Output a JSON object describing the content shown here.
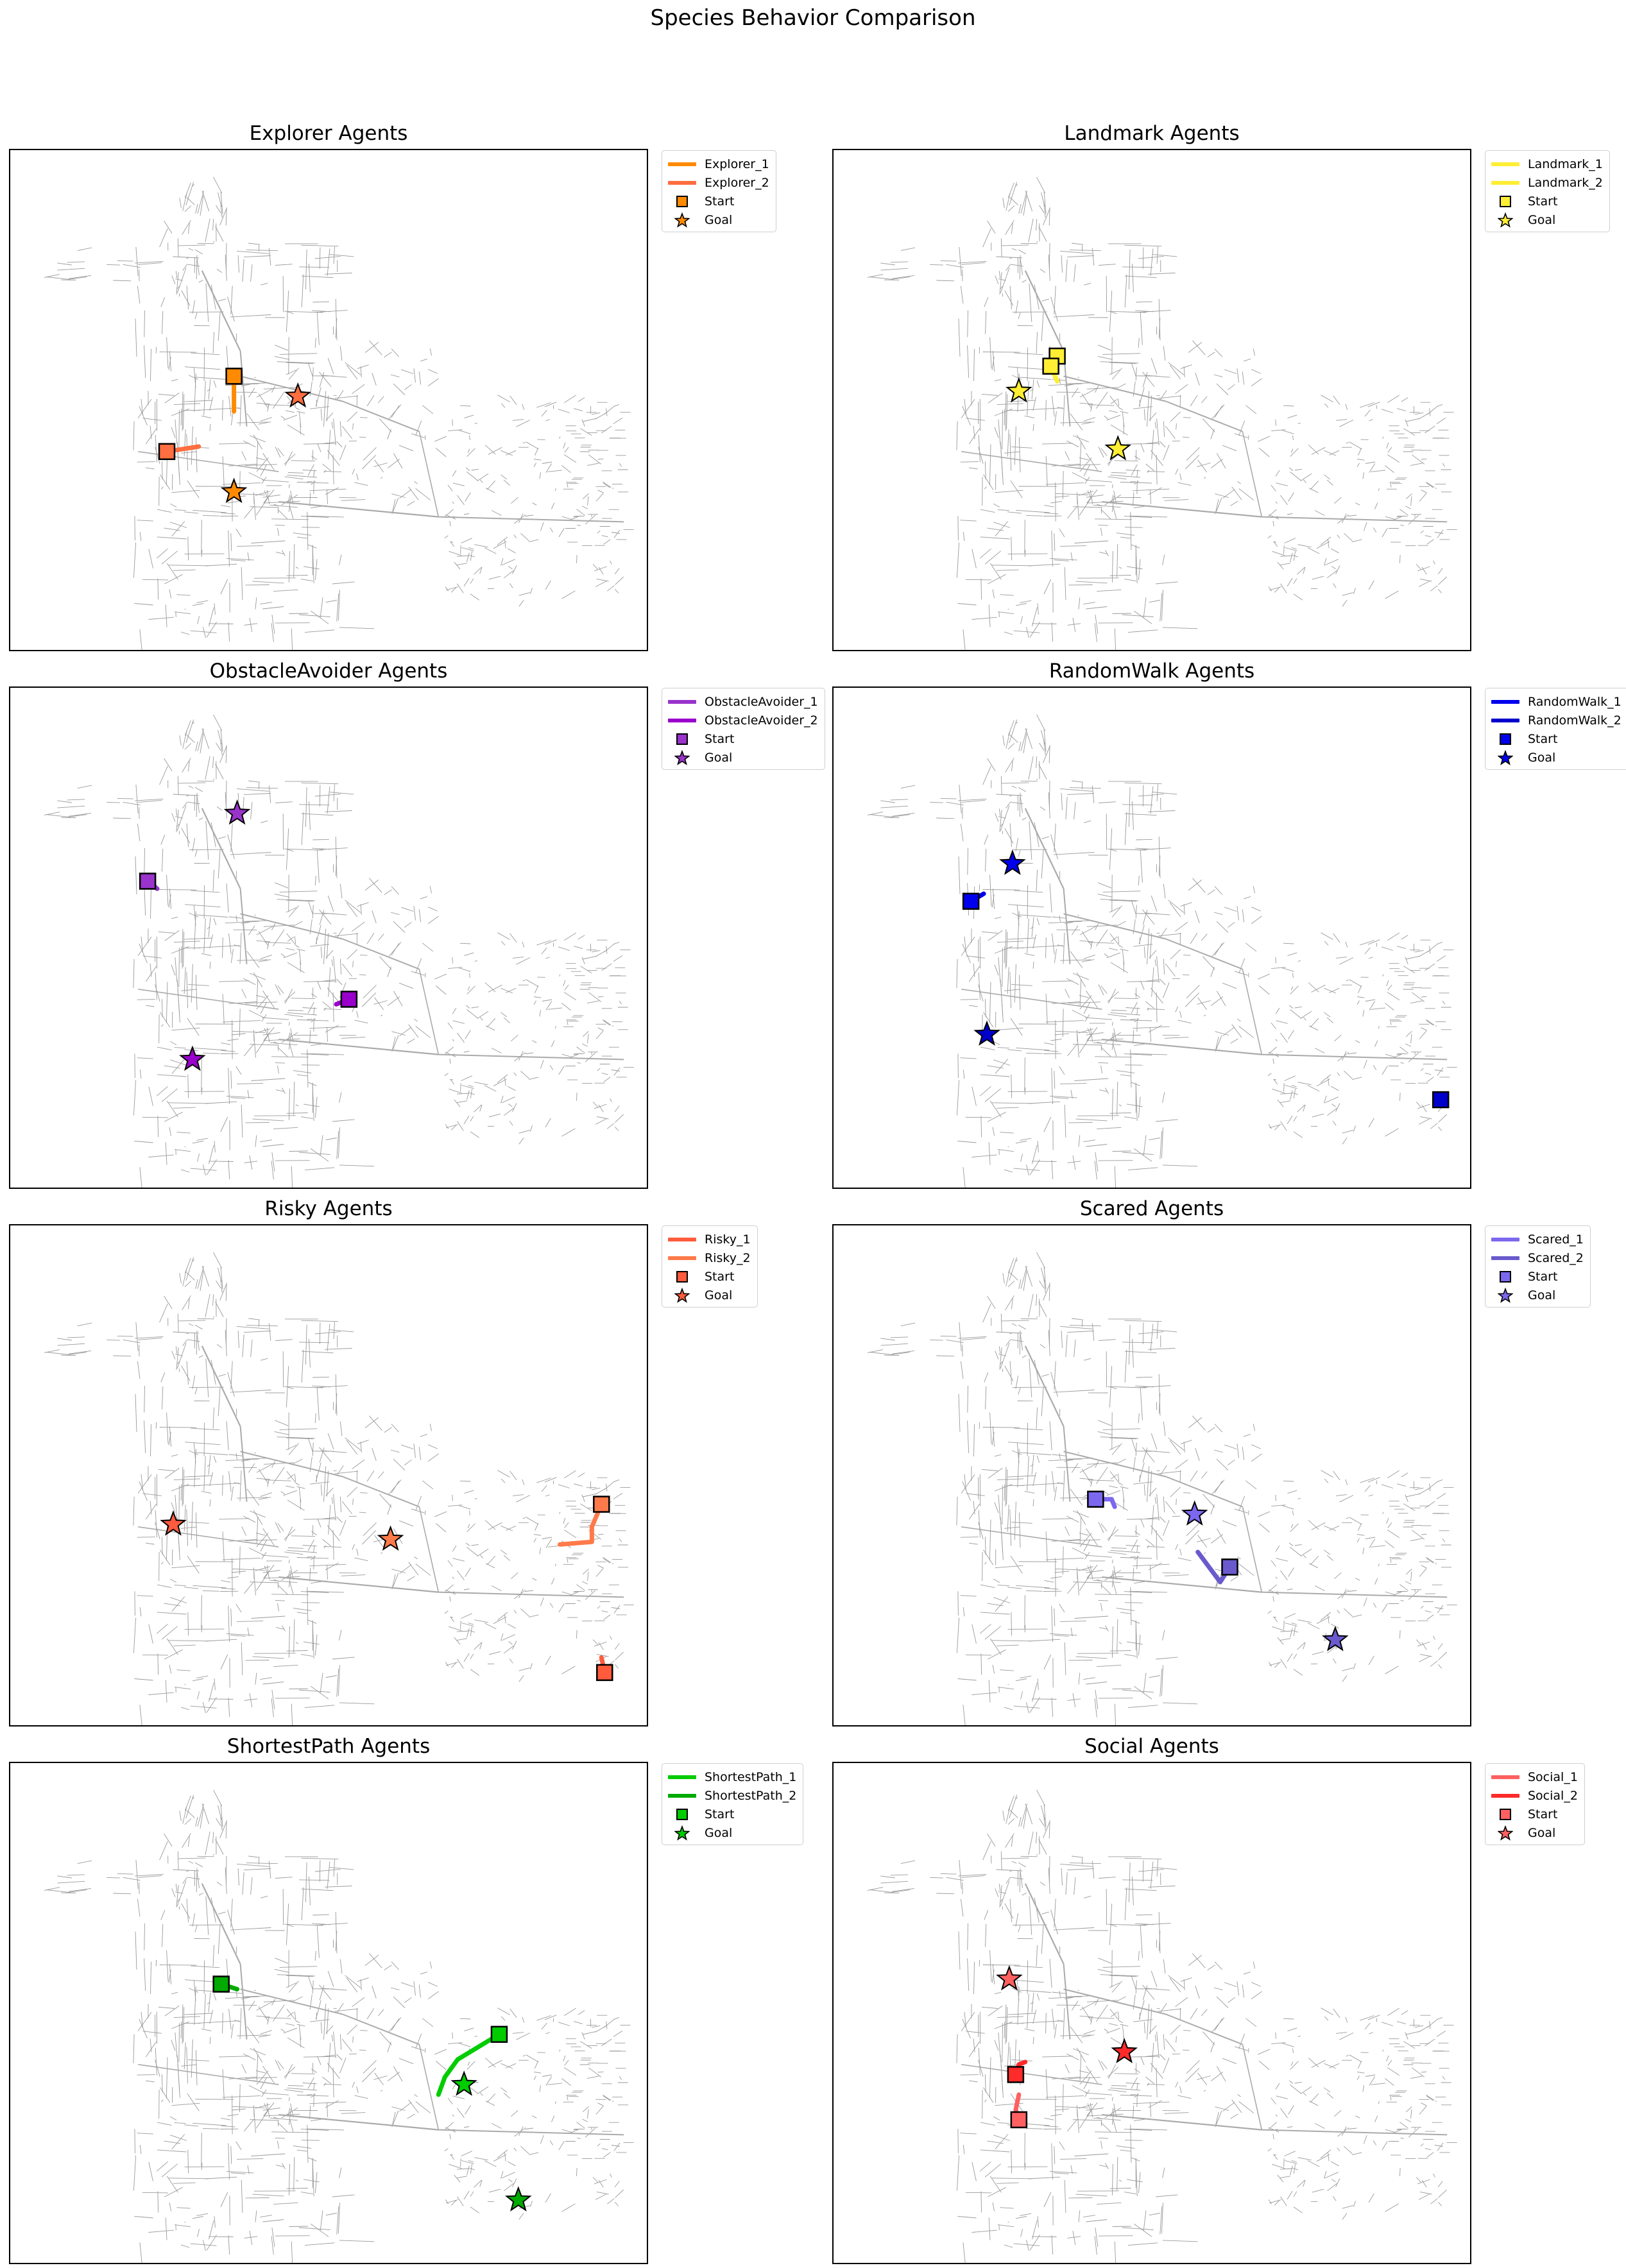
{
  "figure": {
    "title": "Species Behavior Comparison"
  },
  "chart_data": [
    {
      "type": "map-routes",
      "title": "Explorer Agents",
      "color_1": "#ff8a00",
      "color_2": "#ff6e40",
      "goal_color": "#ff8a00",
      "legend": [
        "Explorer_1",
        "Explorer_2",
        "Start",
        "Goal"
      ],
      "series": [
        {
          "name": "Explorer_1",
          "color": "#ff8a00",
          "path": [
            [
              0.35,
              0.45
            ],
            [
              0.35,
              0.52
            ]
          ],
          "start": [
            0.35,
            0.45
          ],
          "goal": [
            0.35,
            0.68
          ]
        },
        {
          "name": "Explorer_2",
          "color": "#ff6e40",
          "path": [
            [
              0.245,
              0.6
            ],
            [
              0.295,
              0.59
            ]
          ],
          "start": [
            0.245,
            0.6
          ],
          "goal": [
            0.45,
            0.49
          ]
        }
      ]
    },
    {
      "type": "map-routes",
      "title": "Landmark Agents",
      "legend": [
        "Landmark_1",
        "Landmark_2",
        "Start",
        "Goal"
      ],
      "series": [
        {
          "name": "Landmark_1",
          "color": "#ffee33",
          "path": [
            [
              0.35,
              0.41
            ],
            [
              0.35,
              0.44
            ]
          ],
          "start": [
            0.35,
            0.41
          ],
          "goal": [
            0.29,
            0.48
          ]
        },
        {
          "name": "Landmark_2",
          "color": "#ffee33",
          "path": [
            [
              0.34,
              0.43
            ],
            [
              0.35,
              0.46
            ]
          ],
          "start": [
            0.34,
            0.43
          ],
          "goal": [
            0.445,
            0.595
          ]
        }
      ]
    },
    {
      "type": "map-routes",
      "title": "ObstacleAvoider Agents",
      "legend": [
        "ObstacleAvoider_1",
        "ObstacleAvoider_2",
        "Start",
        "Goal"
      ],
      "series": [
        {
          "name": "ObstacleAvoider_1",
          "color": "#9933cc",
          "path": [
            [
              0.215,
              0.385
            ],
            [
              0.23,
              0.4
            ]
          ],
          "start": [
            0.215,
            0.385
          ],
          "goal": [
            0.355,
            0.25
          ]
        },
        {
          "name": "ObstacleAvoider_2",
          "color": "#9a00cc",
          "path": [
            [
              0.53,
              0.62
            ],
            [
              0.51,
              0.63
            ]
          ],
          "start": [
            0.53,
            0.62
          ],
          "goal": [
            0.285,
            0.74
          ]
        }
      ]
    },
    {
      "type": "map-routes",
      "title": "RandomWalk Agents",
      "legend": [
        "RandomWalk_1",
        "RandomWalk_2",
        "Start",
        "Goal"
      ],
      "series": [
        {
          "name": "RandomWalk_1",
          "color": "#0000ee",
          "path": [
            [
              0.215,
              0.425
            ],
            [
              0.235,
              0.41
            ]
          ],
          "start": [
            0.215,
            0.425
          ],
          "goal": [
            0.28,
            0.35
          ]
        },
        {
          "name": "RandomWalk_2",
          "color": "#0000cc",
          "path": [
            [
              0.95,
              0.82
            ],
            [
              0.95,
              0.82
            ]
          ],
          "start": [
            0.95,
            0.82
          ],
          "goal": [
            0.24,
            0.69
          ]
        }
      ]
    },
    {
      "type": "map-routes",
      "title": "Risky Agents",
      "legend": [
        "Risky_1",
        "Risky_2",
        "Start",
        "Goal"
      ],
      "series": [
        {
          "name": "Risky_1",
          "color": "#ff5b3c",
          "path": [
            [
              0.93,
              0.89
            ],
            [
              0.925,
              0.86
            ]
          ],
          "start": [
            0.93,
            0.89
          ],
          "goal": [
            0.255,
            0.595
          ]
        },
        {
          "name": "Risky_2",
          "color": "#ff7a4a",
          "path": [
            [
              0.925,
              0.555
            ],
            [
              0.91,
              0.6
            ],
            [
              0.91,
              0.63
            ],
            [
              0.86,
              0.635
            ]
          ],
          "start": [
            0.925,
            0.555
          ],
          "goal": [
            0.595,
            0.625
          ]
        }
      ]
    },
    {
      "type": "map-routes",
      "title": "Scared Agents",
      "legend": [
        "Scared_1",
        "Scared_2",
        "Start",
        "Goal"
      ],
      "series": [
        {
          "name": "Scared_1",
          "color": "#7b68ee",
          "path": [
            [
              0.41,
              0.545
            ],
            [
              0.435,
              0.545
            ],
            [
              0.44,
              0.56
            ]
          ],
          "start": [
            0.41,
            0.545
          ],
          "goal": [
            0.565,
            0.575
          ]
        },
        {
          "name": "Scared_2",
          "color": "#6a5acd",
          "path": [
            [
              0.62,
              0.68
            ],
            [
              0.605,
              0.71
            ],
            [
              0.57,
              0.65
            ]
          ],
          "start": [
            0.62,
            0.68
          ],
          "goal": [
            0.785,
            0.825
          ]
        }
      ]
    },
    {
      "type": "map-routes",
      "title": "ShortestPath Agents",
      "legend": [
        "ShortestPath_1",
        "ShortestPath_2",
        "Start",
        "Goal"
      ],
      "series": [
        {
          "name": "ShortestPath_1",
          "color": "#00cc00",
          "path": [
            [
              0.765,
              0.54
            ],
            [
              0.7,
              0.59
            ],
            [
              0.68,
              0.625
            ],
            [
              0.67,
              0.66
            ]
          ],
          "start": [
            0.765,
            0.54
          ],
          "goal": [
            0.71,
            0.64
          ]
        },
        {
          "name": "ShortestPath_2",
          "color": "#00aa00",
          "path": [
            [
              0.33,
              0.44
            ],
            [
              0.355,
              0.45
            ]
          ],
          "start": [
            0.33,
            0.44
          ],
          "goal": [
            0.795,
            0.87
          ]
        }
      ]
    },
    {
      "type": "map-routes",
      "title": "Social Agents",
      "legend": [
        "Social_1",
        "Social_2",
        "Start",
        "Goal"
      ],
      "series": [
        {
          "name": "Social_1",
          "color": "#ff6060",
          "path": [
            [
              0.29,
              0.71
            ],
            [
              0.285,
              0.69
            ],
            [
              0.29,
              0.66
            ]
          ],
          "start": [
            0.29,
            0.71
          ],
          "goal": [
            0.275,
            0.43
          ]
        },
        {
          "name": "Social_2",
          "color": "#ff2a2a",
          "path": [
            [
              0.285,
              0.62
            ],
            [
              0.29,
              0.6
            ],
            [
              0.3,
              0.595
            ]
          ],
          "start": [
            0.285,
            0.62
          ],
          "goal": [
            0.455,
            0.575
          ]
        }
      ]
    }
  ]
}
